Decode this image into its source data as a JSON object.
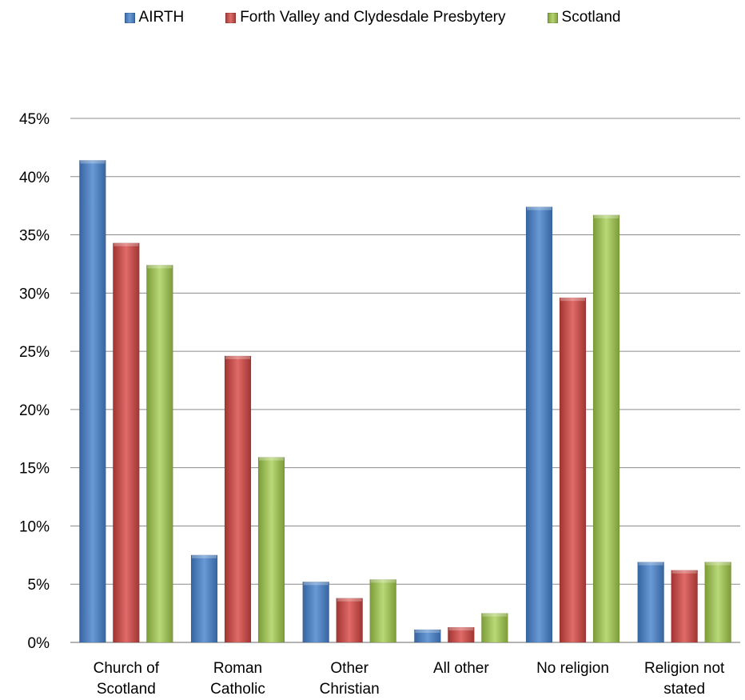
{
  "chart_data": {
    "type": "bar",
    "categories": [
      [
        "Church of",
        "Scotland"
      ],
      [
        "Roman",
        "Catholic"
      ],
      [
        "Other",
        "Christian"
      ],
      [
        "All other"
      ],
      [
        "No religion"
      ],
      [
        "Religion not",
        "stated"
      ]
    ],
    "series": [
      {
        "name": "AIRTH",
        "color": "#4a7ebb",
        "values": [
          41.4,
          7.5,
          5.2,
          1.1,
          37.4,
          6.9
        ]
      },
      {
        "name": "Forth Valley and Clydesdale Presbytery",
        "color": "#be4b48",
        "values": [
          34.3,
          24.6,
          3.8,
          1.3,
          29.6,
          6.2
        ]
      },
      {
        "name": "Scotland",
        "color": "#98b954",
        "values": [
          32.4,
          15.9,
          5.4,
          2.5,
          36.7,
          6.9
        ]
      }
    ],
    "ylim": [
      0,
      45
    ],
    "yticks": [
      "0%",
      "5%",
      "10%",
      "15%",
      "20%",
      "25%",
      "30%",
      "35%",
      "40%",
      "45%"
    ],
    "grid": true,
    "legend_position": "top"
  }
}
